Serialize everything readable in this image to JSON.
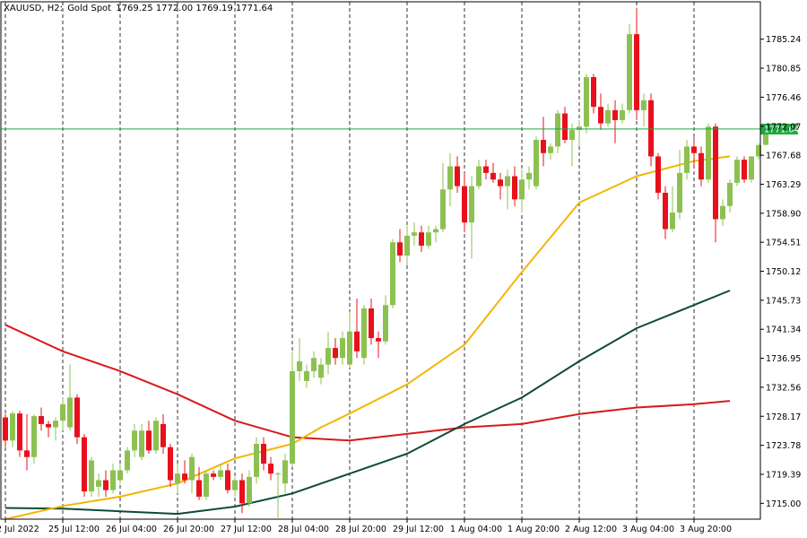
{
  "header": {
    "symbol": "XAUUSD, H2:",
    "name": "Gold Spot",
    "ohlc": "1769.25 1772.00 1769.19 1771.64"
  },
  "chart_data": {
    "type": "candlestick",
    "y_ticks": [
      "1785.24",
      "1780.85",
      "1776.46",
      "1772.07",
      "1767.68",
      "1763.29",
      "1758.90",
      "1754.51",
      "1750.12",
      "1745.73",
      "1741.34",
      "1736.95",
      "1732.56",
      "1728.17",
      "1723.78",
      "1719.39",
      "1715.00"
    ],
    "ylim": [
      1712.6,
      1790.9
    ],
    "x_labels": [
      "22 Jul 2022",
      "25 Jul 12:00",
      "26 Jul 04:00",
      "26 Jul 20:00",
      "27 Jul 12:00",
      "28 Jul 04:00",
      "28 Jul 20:00",
      "29 Jul 12:00",
      "1 Aug 04:00",
      "1 Aug 20:00",
      "2 Aug 12:00",
      "3 Aug 04:00",
      "3 Aug 20:00"
    ],
    "x_label_index": [
      0,
      8,
      16,
      24,
      32,
      40,
      48,
      56,
      64,
      72,
      80,
      88,
      96
    ],
    "current_price": "1771.64",
    "current_price_value": 1771.64,
    "colors": {
      "bull": "#8cc152",
      "bear": "#e8101c",
      "price_line": "#1fa640",
      "ma_fast": "#f2b600",
      "ma_mid": "#0e4a38",
      "ma_slow": "#d71a1a"
    },
    "candles": [
      [
        1728.0,
        1728.5,
        1723.5,
        1724.5
      ],
      [
        1724.5,
        1729.0,
        1723.5,
        1728.6
      ],
      [
        1728.6,
        1729.0,
        1722.0,
        1723.0
      ],
      [
        1723.0,
        1728.5,
        1720.0,
        1722.0
      ],
      [
        1722.0,
        1728.5,
        1721.0,
        1728.2
      ],
      [
        1728.2,
        1729.5,
        1726.0,
        1727.0
      ],
      [
        1727.0,
        1727.5,
        1725.0,
        1726.5
      ],
      [
        1726.5,
        1728.0,
        1724.5,
        1727.5
      ],
      [
        1727.5,
        1731.0,
        1726.0,
        1730.0
      ],
      [
        1726.5,
        1736.0,
        1726.0,
        1731.0
      ],
      [
        1731.0,
        1731.5,
        1724.0,
        1725.0
      ],
      [
        1725.0,
        1725.5,
        1716.0,
        1716.8
      ],
      [
        1716.8,
        1722.0,
        1716.0,
        1721.5
      ],
      [
        1717.5,
        1719.5,
        1716.0,
        1718.5
      ],
      [
        1718.5,
        1720.0,
        1716.0,
        1717.0
      ],
      [
        1717.0,
        1721.0,
        1716.5,
        1720.0
      ],
      [
        1718.5,
        1721.0,
        1718.0,
        1720.0
      ],
      [
        1720.0,
        1723.5,
        1719.5,
        1723.0
      ],
      [
        1723.0,
        1727.0,
        1722.0,
        1726.0
      ],
      [
        1722.0,
        1727.0,
        1721.5,
        1726.0
      ],
      [
        1726.0,
        1727.5,
        1722.5,
        1723.0
      ],
      [
        1723.0,
        1728.0,
        1722.5,
        1727.5
      ],
      [
        1727.0,
        1728.5,
        1722.5,
        1723.5
      ],
      [
        1723.5,
        1724.0,
        1717.5,
        1718.5
      ],
      [
        1718.0,
        1721.0,
        1716.5,
        1719.5
      ],
      [
        1719.5,
        1721.5,
        1718.0,
        1718.5
      ],
      [
        1718.5,
        1722.5,
        1716.5,
        1722.0
      ],
      [
        1718.5,
        1720.5,
        1715.5,
        1716.0
      ],
      [
        1716.0,
        1720.0,
        1715.5,
        1719.5
      ],
      [
        1719.5,
        1720.0,
        1718.5,
        1719.0
      ],
      [
        1719.0,
        1721.0,
        1718.5,
        1720.0
      ],
      [
        1720.0,
        1721.0,
        1716.5,
        1717.0
      ],
      [
        1717.0,
        1719.0,
        1716.0,
        1718.5
      ],
      [
        1718.5,
        1719.5,
        1713.5,
        1715.0
      ],
      [
        1715.0,
        1720.0,
        1714.5,
        1719.0
      ],
      [
        1719.0,
        1725.0,
        1718.0,
        1724.0
      ],
      [
        1724.0,
        1725.0,
        1720.0,
        1721.0
      ],
      [
        1721.0,
        1722.0,
        1718.5,
        1719.5
      ],
      [
        1719.5,
        1719.8,
        1712.8,
        1719.5
      ],
      [
        1718.0,
        1722.5,
        1716.5,
        1721.5
      ],
      [
        1721.0,
        1738.0,
        1720.5,
        1735.0
      ],
      [
        1735.0,
        1740.0,
        1733.5,
        1736.5
      ],
      [
        1733.5,
        1736.0,
        1732.5,
        1735.0
      ],
      [
        1735.0,
        1738.0,
        1734.0,
        1737.0
      ],
      [
        1734.0,
        1737.0,
        1733.0,
        1736.0
      ],
      [
        1736.0,
        1741.0,
        1734.5,
        1738.5
      ],
      [
        1738.5,
        1740.0,
        1736.0,
        1737.0
      ],
      [
        1737.0,
        1741.0,
        1736.0,
        1740.0
      ],
      [
        1736.0,
        1744.0,
        1735.5,
        1741.0
      ],
      [
        1741.0,
        1746.0,
        1737.0,
        1738.0
      ],
      [
        1737.0,
        1745.0,
        1736.0,
        1744.5
      ],
      [
        1744.5,
        1746.0,
        1739.0,
        1740.0
      ],
      [
        1740.0,
        1741.0,
        1737.0,
        1739.5
      ],
      [
        1739.5,
        1746.5,
        1739.0,
        1745.0
      ],
      [
        1745.0,
        1755.0,
        1744.5,
        1754.5
      ],
      [
        1754.5,
        1756.5,
        1751.5,
        1752.5
      ],
      [
        1752.5,
        1757.0,
        1751.0,
        1755.5
      ],
      [
        1755.5,
        1757.5,
        1754.0,
        1756.0
      ],
      [
        1756.0,
        1757.0,
        1753.0,
        1754.0
      ],
      [
        1754.0,
        1757.0,
        1753.5,
        1756.0
      ],
      [
        1756.0,
        1757.0,
        1754.5,
        1756.5
      ],
      [
        1756.5,
        1766.5,
        1756.0,
        1762.5
      ],
      [
        1762.5,
        1768.0,
        1760.0,
        1766.0
      ],
      [
        1766.0,
        1767.5,
        1762.0,
        1763.0
      ],
      [
        1763.0,
        1765.0,
        1756.0,
        1757.5
      ],
      [
        1757.5,
        1764.5,
        1752.0,
        1763.0
      ],
      [
        1763.0,
        1767.0,
        1762.5,
        1766.0
      ],
      [
        1766.0,
        1767.0,
        1764.0,
        1765.0
      ],
      [
        1765.0,
        1766.5,
        1763.5,
        1764.0
      ],
      [
        1764.0,
        1765.0,
        1761.0,
        1763.0
      ],
      [
        1763.0,
        1765.5,
        1759.5,
        1764.5
      ],
      [
        1764.5,
        1766.0,
        1760.0,
        1761.0
      ],
      [
        1761.0,
        1765.5,
        1759.0,
        1764.0
      ],
      [
        1764.0,
        1766.0,
        1762.5,
        1765.0
      ],
      [
        1763.0,
        1770.5,
        1762.5,
        1770.0
      ],
      [
        1770.0,
        1773.5,
        1766.0,
        1768.0
      ],
      [
        1768.0,
        1769.5,
        1767.0,
        1769.0
      ],
      [
        1769.0,
        1774.5,
        1768.0,
        1774.0
      ],
      [
        1774.0,
        1775.0,
        1769.5,
        1770.0
      ],
      [
        1770.0,
        1772.5,
        1766.0,
        1771.5
      ],
      [
        1771.5,
        1773.0,
        1769.0,
        1772.0
      ],
      [
        1772.0,
        1780.0,
        1771.0,
        1779.5
      ],
      [
        1779.5,
        1780.0,
        1774.0,
        1775.0
      ],
      [
        1775.0,
        1777.0,
        1771.5,
        1772.5
      ],
      [
        1772.5,
        1775.5,
        1772.0,
        1774.5
      ],
      [
        1774.5,
        1776.0,
        1769.5,
        1773.0
      ],
      [
        1773.0,
        1775.5,
        1772.5,
        1774.5
      ],
      [
        1774.5,
        1787.5,
        1774.0,
        1786.0
      ],
      [
        1786.0,
        1790.0,
        1773.0,
        1774.5
      ],
      [
        1774.5,
        1777.0,
        1772.0,
        1776.0
      ],
      [
        1776.0,
        1777.0,
        1766.0,
        1767.5
      ],
      [
        1767.5,
        1768.0,
        1761.0,
        1762.0
      ],
      [
        1762.0,
        1763.0,
        1755.0,
        1756.5
      ],
      [
        1756.5,
        1763.0,
        1756.0,
        1759.0
      ],
      [
        1759.0,
        1768.5,
        1758.0,
        1765.0
      ],
      [
        1765.0,
        1770.0,
        1764.0,
        1769.0
      ],
      [
        1769.0,
        1770.5,
        1766.0,
        1768.0
      ],
      [
        1768.0,
        1769.0,
        1763.0,
        1764.0
      ],
      [
        1764.0,
        1772.5,
        1763.5,
        1772.0
      ],
      [
        1772.0,
        1772.5,
        1754.5,
        1758.0
      ],
      [
        1758.0,
        1761.0,
        1757.0,
        1760.0
      ],
      [
        1760.0,
        1764.0,
        1759.0,
        1763.5
      ],
      [
        1763.5,
        1767.5,
        1763.0,
        1767.0
      ],
      [
        1767.0,
        1767.5,
        1763.5,
        1764.0
      ],
      [
        1764.0,
        1767.5,
        1763.5,
        1767.5
      ],
      [
        1767.5,
        1769.5,
        1767.0,
        1769.2
      ],
      [
        1769.25,
        1772.0,
        1769.19,
        1771.64
      ]
    ],
    "ma_fast": [
      [
        0,
        1712.6
      ],
      [
        8,
        1714.6
      ],
      [
        16,
        1716.0
      ],
      [
        24,
        1718.0
      ],
      [
        32,
        1721.8
      ],
      [
        40,
        1724.0
      ],
      [
        44,
        1726.5
      ],
      [
        48,
        1728.6
      ],
      [
        56,
        1733.0
      ],
      [
        64,
        1739.0
      ],
      [
        72,
        1750.0
      ],
      [
        80,
        1760.5
      ],
      [
        88,
        1764.5
      ],
      [
        96,
        1766.8
      ],
      [
        101,
        1767.5
      ]
    ],
    "ma_mid": [
      [
        0,
        1714.3
      ],
      [
        8,
        1714.2
      ],
      [
        16,
        1713.8
      ],
      [
        24,
        1713.4
      ],
      [
        32,
        1714.5
      ],
      [
        40,
        1716.5
      ],
      [
        48,
        1719.5
      ],
      [
        56,
        1722.5
      ],
      [
        64,
        1727.0
      ],
      [
        72,
        1731.0
      ],
      [
        80,
        1736.5
      ],
      [
        88,
        1741.5
      ],
      [
        96,
        1745.0
      ],
      [
        101,
        1747.2
      ]
    ],
    "ma_slow": [
      [
        0,
        1742.0
      ],
      [
        8,
        1738.0
      ],
      [
        16,
        1735.0
      ],
      [
        24,
        1731.5
      ],
      [
        32,
        1727.5
      ],
      [
        40,
        1725.0
      ],
      [
        48,
        1724.5
      ],
      [
        56,
        1725.5
      ],
      [
        64,
        1726.5
      ],
      [
        72,
        1727.0
      ],
      [
        80,
        1728.5
      ],
      [
        88,
        1729.5
      ],
      [
        96,
        1730.0
      ],
      [
        101,
        1730.5
      ]
    ]
  }
}
